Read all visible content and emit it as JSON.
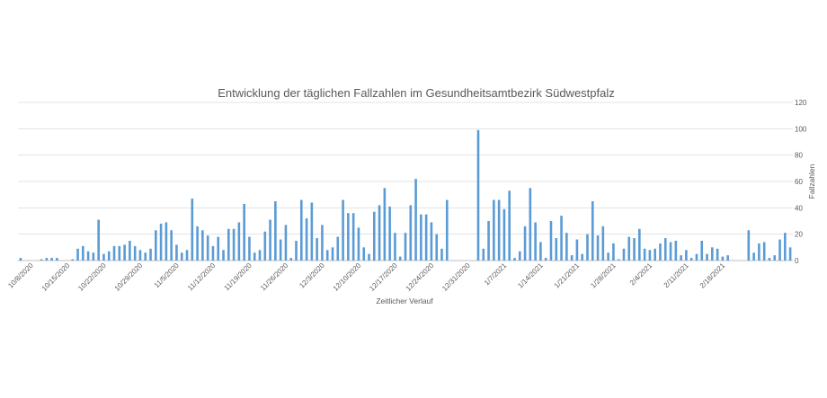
{
  "chart_data": {
    "type": "bar",
    "title": "Entwicklung der täglichen Fallzahlen im Gesundheitsamtbezirk Südwestpfalz",
    "xlabel": "Zeitlicher Verlauf",
    "ylabel": "Fallzahlen",
    "ylim": [
      0,
      120
    ],
    "yticks": [
      0,
      20,
      40,
      60,
      80,
      100,
      120
    ],
    "y_axis_side": "right",
    "grid": true,
    "legend": "none",
    "bar_color": "#5b9bd5",
    "x_start": "10/6/2020",
    "x_tick_labels": [
      "10/8/2020",
      "10/15/2020",
      "10/22/2020",
      "10/29/2020",
      "11/5/2020",
      "11/12/2020",
      "11/19/2020",
      "11/26/2020",
      "12/3/2020",
      "12/10/2020",
      "12/17/2020",
      "12/24/2020",
      "12/31/2020",
      "1/7/2021",
      "1/14/2021",
      "1/21/2021",
      "1/28/2021",
      "2/4/2021",
      "2/11/2021",
      "2/18/2021"
    ],
    "values": [
      2,
      0,
      0,
      0,
      1,
      2,
      2,
      2,
      0,
      0,
      1,
      9,
      11,
      7,
      6,
      31,
      5,
      7,
      11,
      11,
      12,
      15,
      11,
      8,
      6,
      9,
      23,
      28,
      29,
      23,
      12,
      6,
      8,
      47,
      26,
      23,
      19,
      11,
      18,
      8,
      24,
      24,
      29,
      43,
      18,
      6,
      8,
      22,
      31,
      45,
      16,
      27,
      2,
      15,
      46,
      32,
      44,
      17,
      27,
      8,
      10,
      18,
      46,
      36,
      36,
      25,
      10,
      5,
      37,
      42,
      55,
      41,
      21,
      3,
      21,
      42,
      62,
      35,
      35,
      29,
      20,
      9,
      46,
      0,
      0,
      0,
      0,
      0,
      99,
      9,
      30,
      46,
      46,
      39,
      53,
      2,
      7,
      26,
      55,
      29,
      14,
      2,
      30,
      17,
      34,
      21,
      4,
      16,
      5,
      20,
      45,
      19,
      26,
      6,
      13,
      1,
      9,
      18,
      17,
      24,
      9,
      8,
      9,
      13,
      17,
      14,
      15,
      4,
      8,
      2,
      5,
      15,
      5,
      10,
      9,
      3,
      4,
      0,
      0,
      0,
      23,
      6,
      13,
      14,
      2,
      4,
      16,
      21,
      10
    ]
  }
}
